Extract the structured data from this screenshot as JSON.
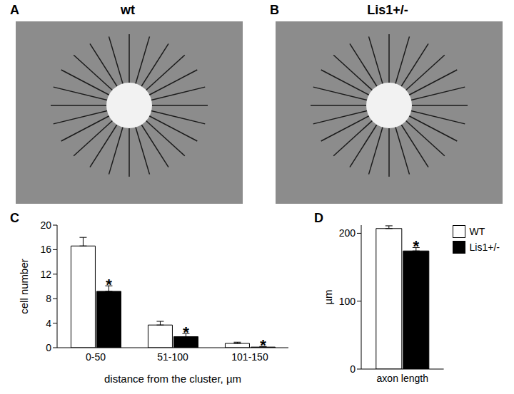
{
  "images": [
    {
      "label": "A",
      "title": "wt"
    },
    {
      "label": "B",
      "title": "Lis1+/-"
    }
  ],
  "chart_data": [
    {
      "label": "C",
      "type": "bar",
      "categories": [
        "0-50",
        "51-100",
        "101-150"
      ],
      "x_label": "distance from the cluster, µm",
      "y_label": "cell number",
      "ylim": [
        0,
        20
      ],
      "yticks": [
        0,
        4,
        8,
        12,
        16,
        20
      ],
      "series": [
        {
          "name": "WT",
          "color": "#ffffff",
          "values": [
            16.6,
            3.7,
            0.7
          ],
          "errors": [
            1.4,
            0.6,
            0.2
          ]
        },
        {
          "name": "Lis1+/-",
          "color": "#000000",
          "values": [
            9.2,
            1.8,
            0.1
          ],
          "errors": [
            0.9,
            0.5,
            0.1
          ]
        }
      ],
      "annotations": [
        {
          "category": "0-50",
          "series": "Lis1+/-",
          "text": "*"
        },
        {
          "category": "51-100",
          "series": "Lis1+/-",
          "text": "*"
        },
        {
          "category": "101-150",
          "series": "Lis1+/-",
          "text": "*"
        }
      ]
    },
    {
      "label": "D",
      "type": "bar",
      "categories": [
        "axon length"
      ],
      "y_label": "µm",
      "ylim": [
        0,
        212
      ],
      "yticks": [
        0,
        100,
        200
      ],
      "legend": "top-right",
      "series": [
        {
          "name": "WT",
          "color": "#ffffff",
          "values": [
            207
          ],
          "errors": [
            4
          ]
        },
        {
          "name": "Lis1+/-",
          "color": "#000000",
          "values": [
            174
          ],
          "errors": [
            5
          ]
        }
      ],
      "annotations": [
        {
          "category": "axon length",
          "series": "Lis1+/-",
          "text": "*"
        }
      ]
    }
  ]
}
